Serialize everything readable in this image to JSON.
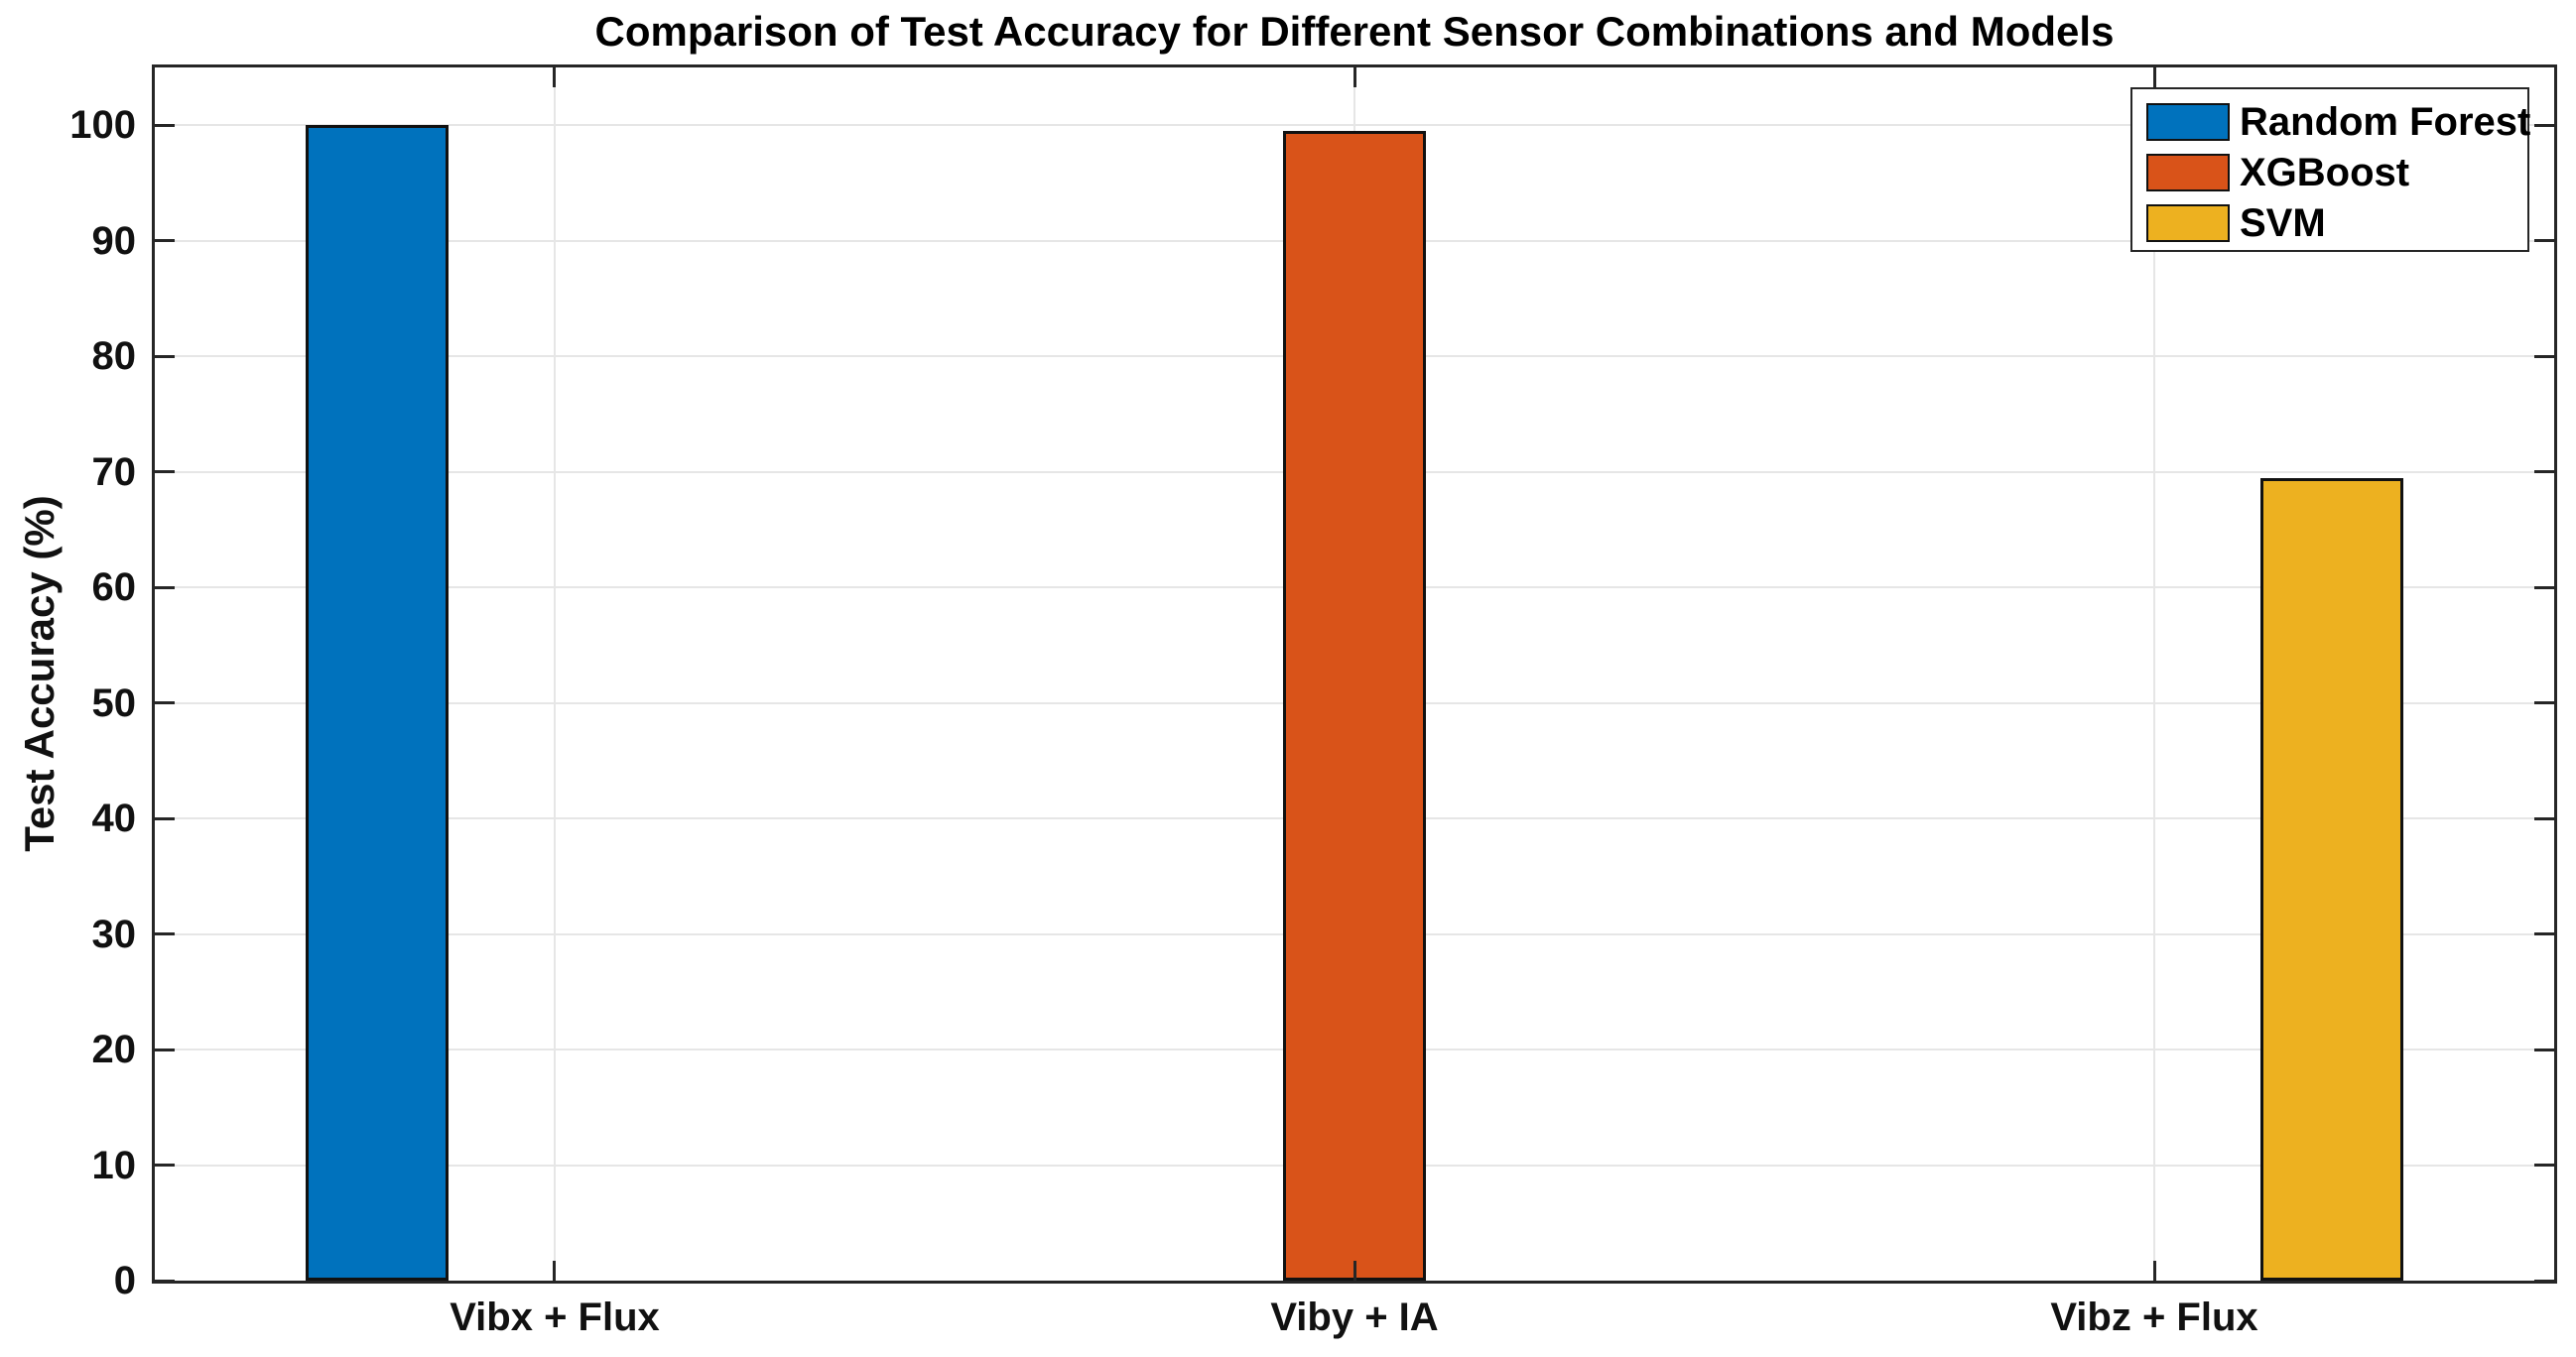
{
  "chart_data": {
    "type": "bar",
    "title": "Comparison of Test Accuracy for Different Sensor Combinations and Models",
    "xlabel": "",
    "ylabel": "Test Accuracy (%)",
    "categories": [
      "Vibx + Flux",
      "Viby + IA",
      "Vibz + Flux"
    ],
    "series": [
      {
        "name": "Random Forest",
        "color": "#0072BD",
        "values": [
          100,
          0,
          0
        ]
      },
      {
        "name": "XGBoost",
        "color": "#D95319",
        "values": [
          0,
          99.5,
          0
        ]
      },
      {
        "name": "SVM",
        "color": "#EDB120",
        "values": [
          0,
          0,
          69.5
        ]
      }
    ],
    "ylim": [
      0,
      105
    ],
    "yticks": [
      0,
      10,
      20,
      30,
      40,
      50,
      60,
      70,
      80,
      90,
      100
    ],
    "grid": true,
    "legend_position": "top-right",
    "axis_color": "#262626",
    "grid_color": "#e6e6e6",
    "bar_edge_color": "#111111",
    "background_color": "#ffffff"
  }
}
